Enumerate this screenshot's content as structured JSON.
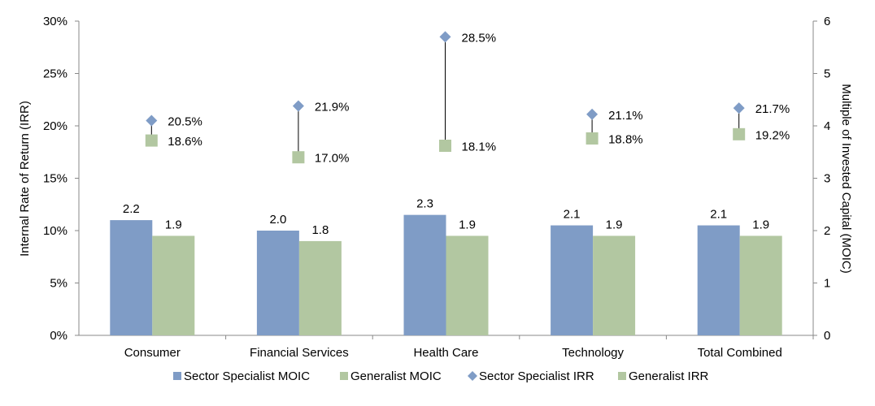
{
  "chart_data": {
    "type": "bar",
    "categories": [
      "Consumer",
      "Financial Services",
      "Health Care",
      "Technology",
      "Total Combined"
    ],
    "series": [
      {
        "name": "Sector Specialist MOIC",
        "kind": "bar",
        "axis": "right",
        "color": "#7F9CC6",
        "values": [
          2.2,
          2.0,
          2.3,
          2.1,
          2.1
        ],
        "labels": [
          "2.2",
          "2.0",
          "2.3",
          "2.1",
          "2.1"
        ]
      },
      {
        "name": "Generalist MOIC",
        "kind": "bar",
        "axis": "right",
        "color": "#B2C7A1",
        "values": [
          1.9,
          1.8,
          1.9,
          1.9,
          1.9
        ],
        "labels": [
          "1.9",
          "1.8",
          "1.9",
          "1.9",
          "1.9"
        ]
      },
      {
        "name": "Sector Specialist IRR",
        "kind": "diamond",
        "axis": "left",
        "color": "#7F9CC6",
        "values": [
          20.5,
          21.9,
          28.5,
          21.1,
          21.7
        ],
        "labels": [
          "20.5%",
          "21.9%",
          "28.5%",
          "21.1%",
          "21.7%"
        ]
      },
      {
        "name": "Generalist IRR",
        "kind": "square",
        "axis": "left",
        "color": "#B2C7A1",
        "values": [
          18.6,
          17.0,
          18.1,
          18.8,
          19.2
        ],
        "labels": [
          "18.6%",
          "17.0%",
          "18.1%",
          "18.8%",
          "19.2%"
        ]
      }
    ],
    "ylabel": "Internal Rate of Return (IRR)",
    "y2label": "Multiple of Invested Capital (MOIC)",
    "ylim": [
      0,
      30
    ],
    "y2lim": [
      0,
      6
    ],
    "yticks": [
      "0%",
      "5%",
      "10%",
      "15%",
      "20%",
      "25%",
      "30%"
    ],
    "y2ticks": [
      "0",
      "1",
      "2",
      "3",
      "4",
      "5",
      "6"
    ],
    "grid": false,
    "legend": "bottom"
  }
}
